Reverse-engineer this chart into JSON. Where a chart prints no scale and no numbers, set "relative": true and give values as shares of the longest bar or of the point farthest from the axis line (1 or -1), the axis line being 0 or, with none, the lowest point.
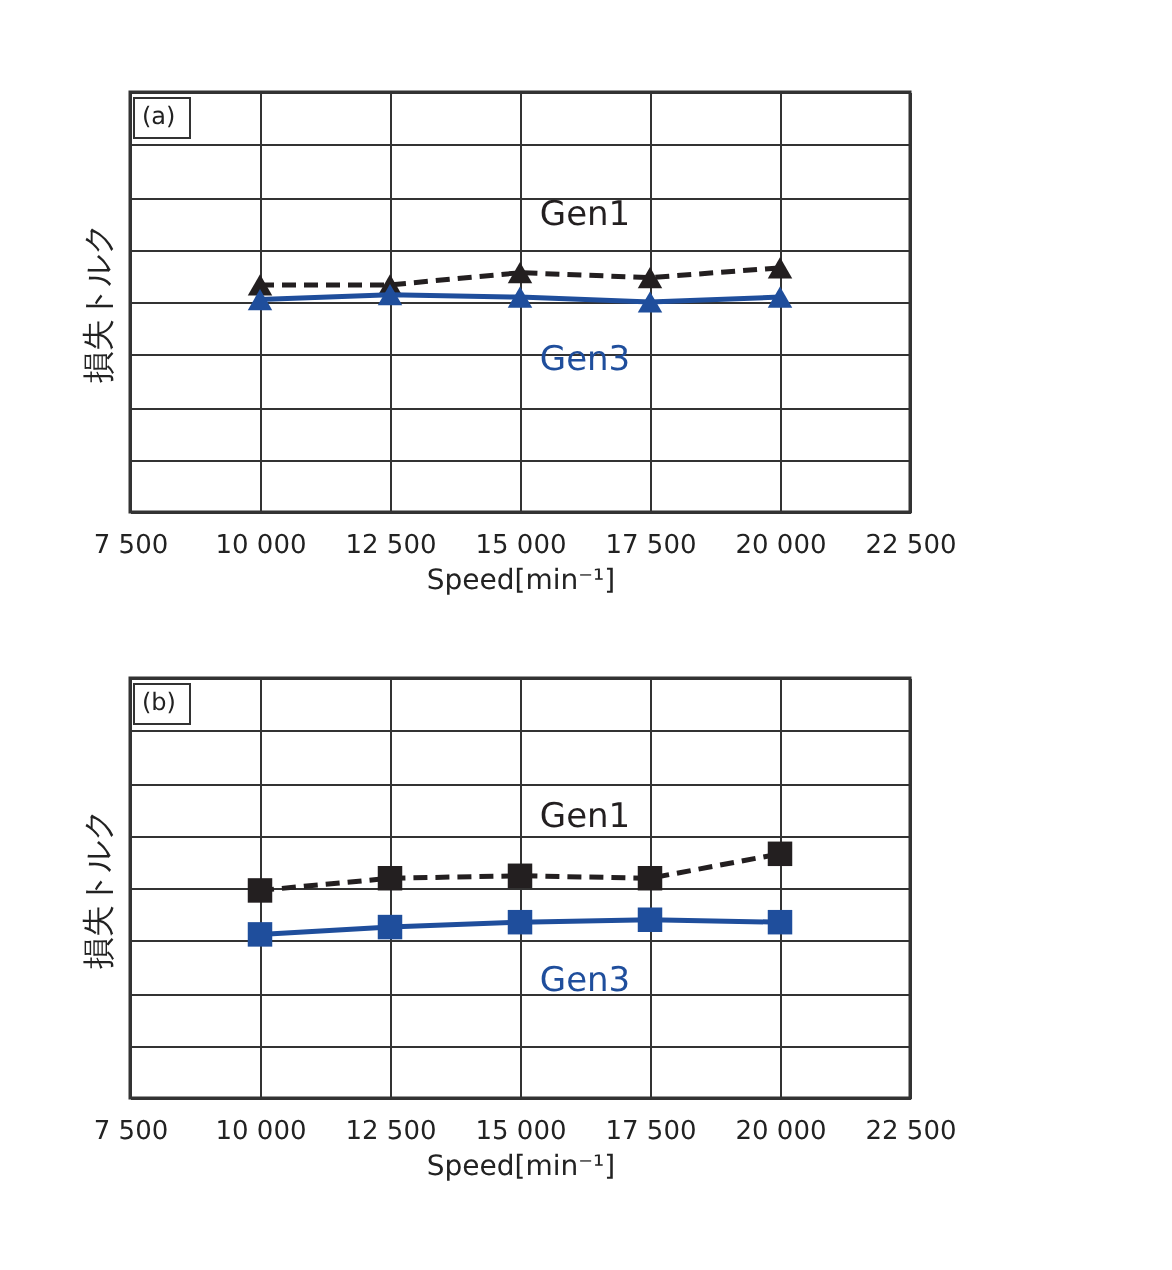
{
  "chart_data": [
    {
      "type": "line",
      "relative": true,
      "xlabel": "Speed[min⁻¹]",
      "ylabel": "損失トルク",
      "annotations": [
        "(a)"
      ],
      "x": [
        10000,
        12500,
        15000,
        17500,
        20000
      ],
      "xlim": [
        7500,
        22500
      ],
      "xticks": [
        {
          "value": 7500,
          "label": "7 500"
        },
        {
          "value": 10000,
          "label": "10 000"
        },
        {
          "value": 12500,
          "label": "12 500"
        },
        {
          "value": 15000,
          "label": "15 000"
        },
        {
          "value": 17500,
          "label": "17 500"
        },
        {
          "value": 20000,
          "label": "20 000"
        },
        {
          "value": 22500,
          "label": "22 500"
        }
      ],
      "grid": true,
      "series": [
        {
          "name": "Gen1",
          "color": "#231f20",
          "line_style": "dashed",
          "marker": "triangle",
          "values": [
            0.93,
            0.93,
            0.98,
            0.96,
            1
          ]
        },
        {
          "name": "Gen3",
          "color": "#1f4e9c",
          "line_style": "solid",
          "marker": "triangle",
          "values": [
            0.87,
            0.89,
            0.88,
            0.86,
            0.88
          ]
        }
      ]
    },
    {
      "type": "line",
      "relative": true,
      "xlabel": "Speed[min⁻¹]",
      "ylabel": "損失トルク",
      "annotations": [
        "(b)"
      ],
      "x": [
        10000,
        12500,
        15000,
        17500,
        20000
      ],
      "xlim": [
        7500,
        22500
      ],
      "xticks": [
        {
          "value": 7500,
          "label": "7 500"
        },
        {
          "value": 10000,
          "label": "10 000"
        },
        {
          "value": 12500,
          "label": "12 500"
        },
        {
          "value": 15000,
          "label": "15 000"
        },
        {
          "value": 17500,
          "label": "17 500"
        },
        {
          "value": 20000,
          "label": "20 000"
        },
        {
          "value": 22500,
          "label": "22 500"
        }
      ],
      "grid": true,
      "series": [
        {
          "name": "Gen1",
          "color": "#231f20",
          "line_style": "dashed",
          "marker": "square",
          "values": [
            0.85,
            0.9,
            0.91,
            0.9,
            1
          ]
        },
        {
          "name": "Gen3",
          "color": "#1f4e9c",
          "line_style": "solid",
          "marker": "square",
          "values": [
            0.67,
            0.7,
            0.72,
            0.73,
            0.72
          ]
        }
      ]
    }
  ]
}
